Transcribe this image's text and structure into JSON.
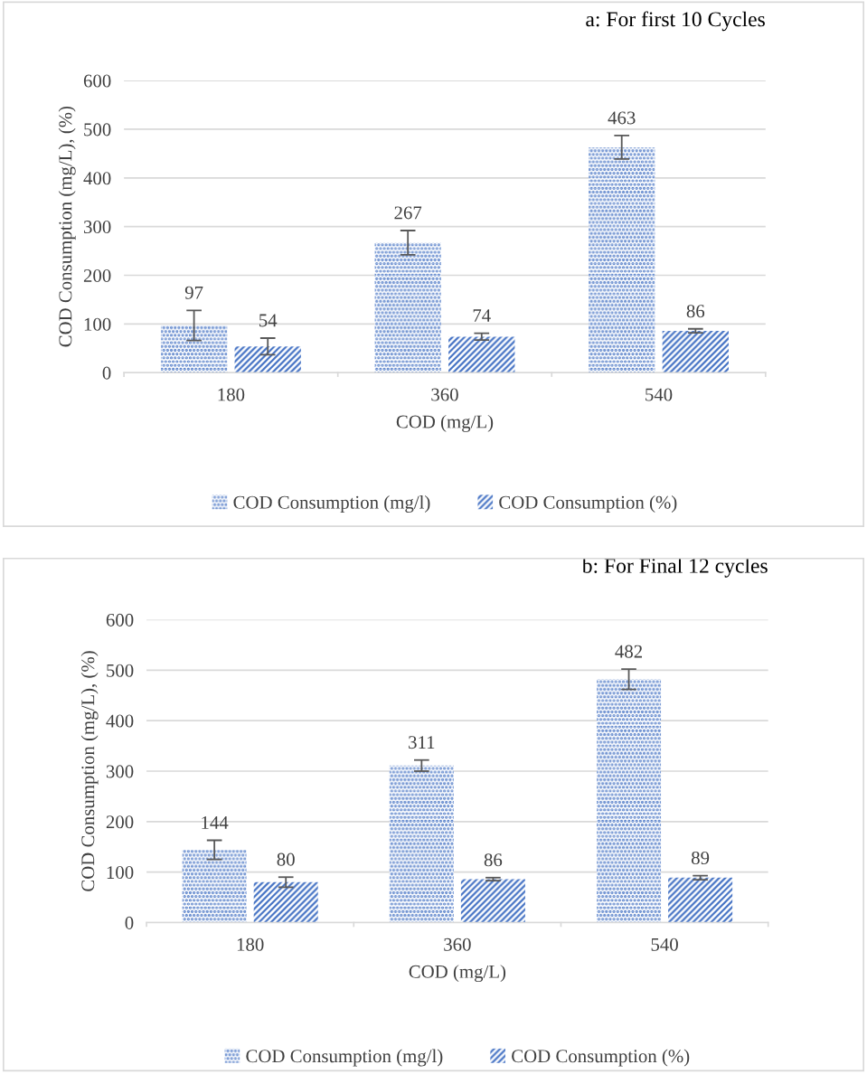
{
  "chart_data": [
    {
      "type": "bar",
      "title": "a: For first 10 Cycles",
      "xlabel": "COD (mg/L)",
      "ylabel": "COD Consumption (mg/L), (%)",
      "categories": [
        "180",
        "360",
        "540"
      ],
      "ylim": [
        0,
        600
      ],
      "yticks": [
        0,
        100,
        200,
        300,
        400,
        500,
        600
      ],
      "grid": "y",
      "legend": "bottom",
      "data_labels": true,
      "series": [
        {
          "name": "COD Consumption (mg/l)",
          "color": "#4472c4",
          "values": [
            97,
            267,
            463
          ],
          "errors": [
            31,
            25,
            24
          ]
        },
        {
          "name": "COD Consumption (%)",
          "color": "#4472c4",
          "values": [
            54,
            74,
            86
          ],
          "errors": [
            17,
            7,
            4
          ]
        }
      ]
    },
    {
      "type": "bar",
      "title": "b: For Final 12 cycles",
      "xlabel": "COD (mg/L)",
      "ylabel": "COD Consumption (mg/L), (%)",
      "categories": [
        "180",
        "360",
        "540"
      ],
      "ylim": [
        0,
        600
      ],
      "yticks": [
        0,
        100,
        200,
        300,
        400,
        500,
        600
      ],
      "grid": "y",
      "legend": "bottom",
      "data_labels": true,
      "series": [
        {
          "name": "COD Consumption (mg/l)",
          "color": "#4472c4",
          "values": [
            144,
            311,
            482
          ],
          "errors": [
            19,
            11,
            20
          ]
        },
        {
          "name": "COD Consumption (%)",
          "color": "#4472c4",
          "values": [
            80,
            86,
            89
          ],
          "errors": [
            10,
            3,
            4
          ]
        }
      ]
    }
  ]
}
